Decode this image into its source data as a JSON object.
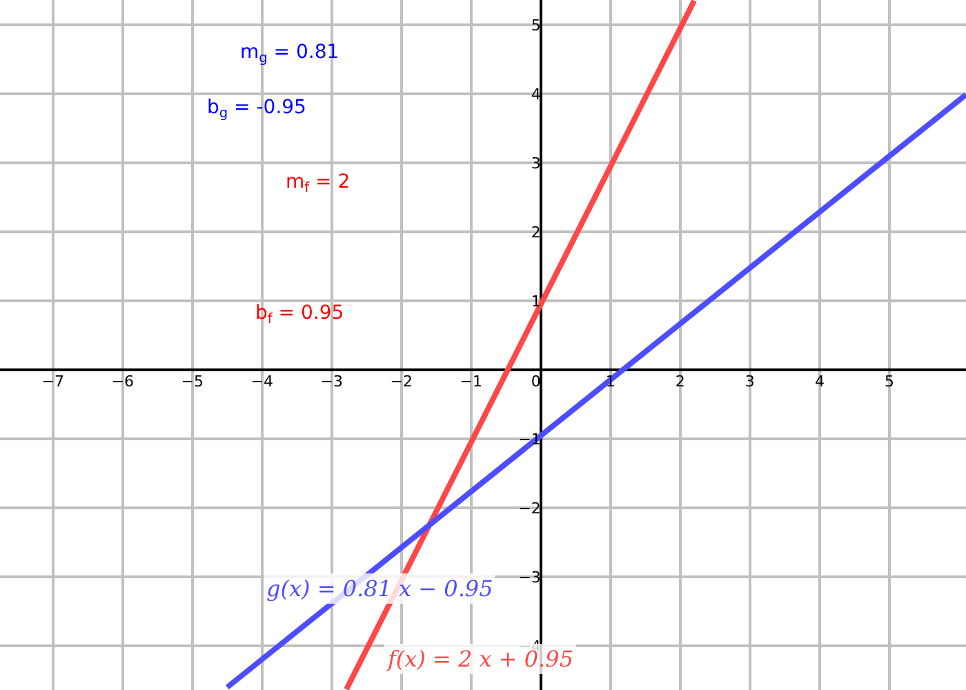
{
  "chart_data": {
    "type": "line",
    "series": [
      {
        "name": null,
        "color": "#ff4747",
        "x": [
          -2.79,
          2.2
        ],
        "values": [
          -4.63,
          5.35
        ]
      },
      {
        "name": null,
        "color": "#4d4dff",
        "x": [
          -4.5,
          6.1
        ],
        "values": [
          -4.6,
          3.99
        ]
      }
    ],
    "xlim": [
      -7.76,
      6.1
    ],
    "ylim": [
      -4.64,
      5.36
    ],
    "xticks": [
      -7,
      -6,
      -5,
      -4,
      -3,
      -2,
      -1,
      0,
      1,
      2,
      3,
      4,
      5
    ],
    "yticks": [
      -4,
      -3,
      -2,
      -1,
      1,
      2,
      3,
      4,
      5
    ],
    "grid": true,
    "line_style": "solid",
    "marker": "none",
    "annotations": [
      "m$_{g}$ = 0.81",
      "b$_{g}$ = -0.95",
      "m$_{f}$ = 2",
      "b$_{f}$ = 0.95",
      "g(x) = 0.81 x − 0.95",
      "f(x) = 2 x + 0.95"
    ]
  }
}
